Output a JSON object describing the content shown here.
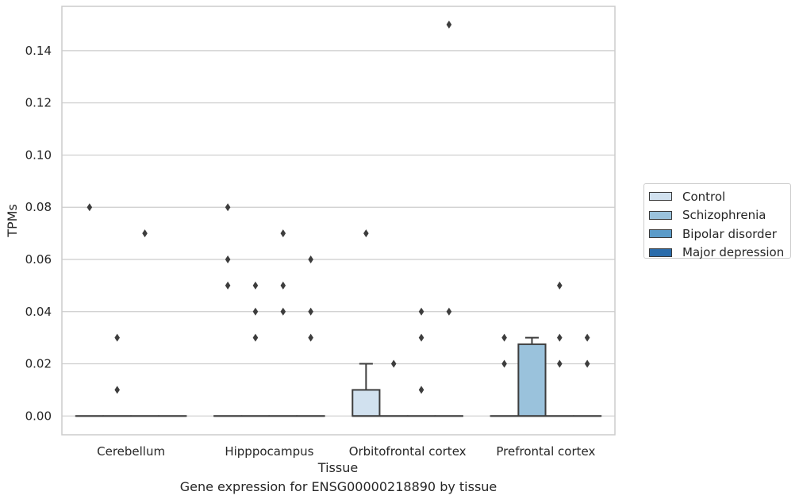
{
  "chart_data": {
    "type": "box",
    "xlabel": "Tissue",
    "ylabel": "TPMs",
    "caption": "Gene expression for ENSG00000218890 by tissue",
    "ylim": [
      -0.0072,
      0.157
    ],
    "yticks": [
      0.0,
      0.02,
      0.04,
      0.06,
      0.08,
      0.1,
      0.12,
      0.14
    ],
    "ytick_labels": [
      "0.00",
      "0.02",
      "0.04",
      "0.06",
      "0.08",
      "0.10",
      "0.12",
      "0.14"
    ],
    "grid": true,
    "legend_position": "right",
    "categories": [
      "Cerebellum",
      "Hipppocampus",
      "Orbitofrontal cortex",
      "Prefrontal cortex"
    ],
    "series": [
      {
        "name": "Control",
        "color": "#d1e1ef",
        "boxes": [
          {
            "q1": 0,
            "median": 0,
            "q3": 0,
            "whislo": 0,
            "whishi": 0,
            "fliers": [
              0.08
            ]
          },
          {
            "q1": 0,
            "median": 0,
            "q3": 0,
            "whislo": 0,
            "whishi": 0,
            "fliers": [
              0.08,
              0.06,
              0.05
            ]
          },
          {
            "q1": 0,
            "median": 0,
            "q3": 0.01,
            "whislo": 0,
            "whishi": 0.02,
            "fliers": [
              0.07
            ]
          },
          {
            "q1": 0,
            "median": 0,
            "q3": 0,
            "whislo": 0,
            "whishi": 0,
            "fliers": [
              0.03,
              0.02
            ]
          }
        ]
      },
      {
        "name": "Schizophrenia",
        "color": "#9ac2dc",
        "boxes": [
          {
            "q1": 0,
            "median": 0,
            "q3": 0,
            "whislo": 0,
            "whishi": 0,
            "fliers": [
              0.03,
              0.01
            ]
          },
          {
            "q1": 0,
            "median": 0,
            "q3": 0,
            "whislo": 0,
            "whishi": 0,
            "fliers": [
              0.05,
              0.04,
              0.03
            ]
          },
          {
            "q1": 0,
            "median": 0,
            "q3": 0,
            "whislo": 0,
            "whishi": 0,
            "fliers": [
              0.02
            ]
          },
          {
            "q1": 0,
            "median": 0,
            "q3": 0.0275,
            "whislo": 0,
            "whishi": 0.03,
            "fliers": []
          }
        ]
      },
      {
        "name": "Bipolar disorder",
        "color": "#5a9bc9",
        "boxes": [
          {
            "q1": 0,
            "median": 0,
            "q3": 0,
            "whislo": 0,
            "whishi": 0,
            "fliers": [
              0.07
            ]
          },
          {
            "q1": 0,
            "median": 0,
            "q3": 0,
            "whislo": 0,
            "whishi": 0,
            "fliers": [
              0.07,
              0.05,
              0.04
            ]
          },
          {
            "q1": 0,
            "median": 0,
            "q3": 0,
            "whislo": 0,
            "whishi": 0,
            "fliers": [
              0.04,
              0.03,
              0.01
            ]
          },
          {
            "q1": 0,
            "median": 0,
            "q3": 0,
            "whislo": 0,
            "whishi": 0,
            "fliers": [
              0.05,
              0.03,
              0.02
            ]
          }
        ]
      },
      {
        "name": "Major depression",
        "color": "#2a6cab",
        "boxes": [
          {
            "q1": 0,
            "median": 0,
            "q3": 0,
            "whislo": 0,
            "whishi": 0,
            "fliers": []
          },
          {
            "q1": 0,
            "median": 0,
            "q3": 0,
            "whislo": 0,
            "whishi": 0,
            "fliers": [
              0.06,
              0.04,
              0.03
            ]
          },
          {
            "q1": 0,
            "median": 0,
            "q3": 0,
            "whislo": 0,
            "whishi": 0,
            "fliers": [
              0.15,
              0.04
            ]
          },
          {
            "q1": 0,
            "median": 0,
            "q3": 0,
            "whislo": 0,
            "whishi": 0,
            "fliers": [
              0.03,
              0.02
            ]
          }
        ]
      }
    ]
  }
}
